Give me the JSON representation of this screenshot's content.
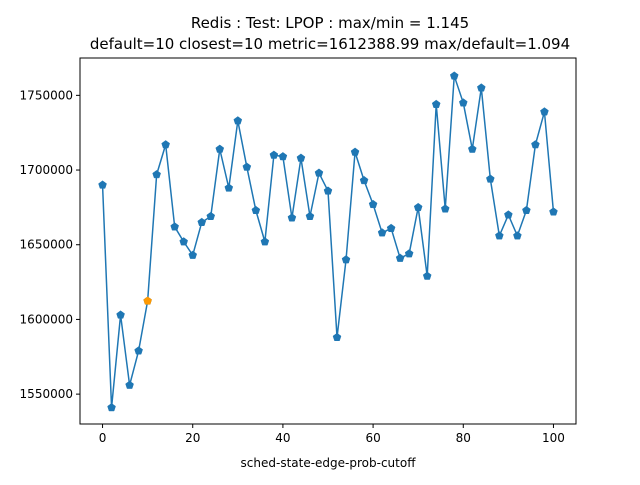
{
  "chart_data": {
    "type": "line",
    "title_lines": [
      "Redis : Test: LPOP : max/min = 1.145",
      "default=10 closest=10 metric=1612388.99 max/default=1.094"
    ],
    "xlabel": "sched-state-edge-prob-cutoff",
    "ylabel": "",
    "xlim": [
      -5,
      105
    ],
    "ylim": [
      1530000,
      1775000
    ],
    "x_ticks": [
      0,
      20,
      40,
      60,
      80,
      100
    ],
    "y_ticks": [
      1550000,
      1600000,
      1650000,
      1700000,
      1750000
    ],
    "grid": false,
    "legend": "none",
    "line_color": "#1f77b4",
    "highlight_color": "#ff9900",
    "series": [
      {
        "x": [
          0,
          2,
          4,
          6,
          8,
          10,
          12,
          14,
          16,
          18,
          20,
          22,
          24,
          26,
          28,
          30,
          32,
          34,
          36,
          38,
          40,
          42,
          44,
          46,
          48,
          50,
          52,
          54,
          56,
          58,
          60,
          62,
          64,
          66,
          68,
          70,
          72,
          74,
          76,
          78,
          80,
          82,
          84,
          86,
          88,
          90,
          92,
          94,
          96,
          98,
          100
        ],
        "values": [
          1690000,
          1541000,
          1603000,
          1556000,
          1579000,
          1612389,
          1697000,
          1717000,
          1662000,
          1652000,
          1643000,
          1665000,
          1669000,
          1714000,
          1688000,
          1733000,
          1702000,
          1673000,
          1652000,
          1710000,
          1709000,
          1668000,
          1708000,
          1669000,
          1698000,
          1686000,
          1588000,
          1640000,
          1712000,
          1693000,
          1677000,
          1658000,
          1661000,
          1641000,
          1644000,
          1675000,
          1629000,
          1744000,
          1674000,
          1763000,
          1745000,
          1714000,
          1755000,
          1694000,
          1656000,
          1670000,
          1656000,
          1673000,
          1717000,
          1739000,
          1672000
        ]
      }
    ],
    "highlight_point": {
      "x": 10,
      "y": 1612389
    }
  }
}
